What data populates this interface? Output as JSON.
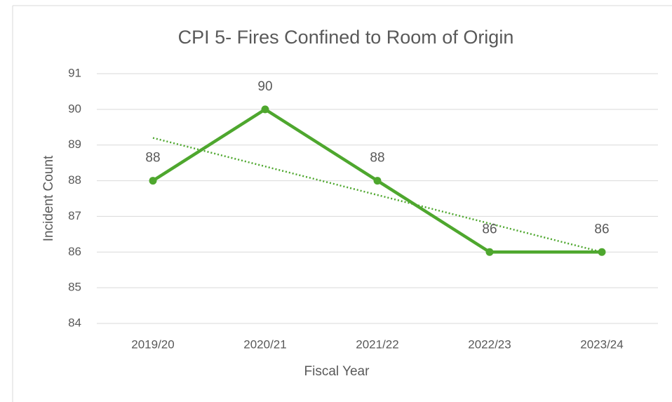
{
  "chart_data": {
    "type": "line",
    "title": "CPI 5- Fires Confined to Room of Origin",
    "x_label": "Fiscal Year",
    "y_label": "Incident Count",
    "categories": [
      "2019/20",
      "2020/21",
      "2021/22",
      "2022/23",
      "2023/24"
    ],
    "series": [
      {
        "name": "Incident Count",
        "color": "#4ea72e",
        "values": [
          88,
          90,
          88,
          86,
          86
        ]
      }
    ],
    "ylim": [
      84,
      91
    ],
    "yticks": [
      84,
      85,
      86,
      87,
      88,
      89,
      90,
      91
    ],
    "grid": true,
    "data_labels": true,
    "trendline": "linear"
  }
}
